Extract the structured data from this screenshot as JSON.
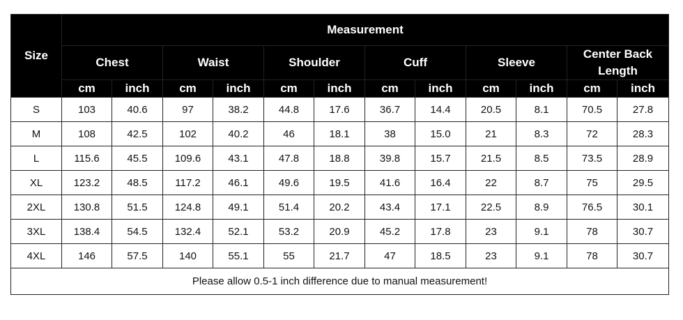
{
  "header": {
    "size_label": "Size",
    "measurement_label": "Measurement",
    "groups": [
      "Chest",
      "Waist",
      "Shoulder",
      "Cuff",
      "Sleeve",
      "Center Back Length"
    ],
    "unit_cm": "cm",
    "unit_inch": "inch"
  },
  "rows": [
    {
      "size": "S",
      "values": [
        "103",
        "40.6",
        "97",
        "38.2",
        "44.8",
        "17.6",
        "36.7",
        "14.4",
        "20.5",
        "8.1",
        "70.5",
        "27.8"
      ]
    },
    {
      "size": "M",
      "values": [
        "108",
        "42.5",
        "102",
        "40.2",
        "46",
        "18.1",
        "38",
        "15.0",
        "21",
        "8.3",
        "72",
        "28.3"
      ]
    },
    {
      "size": "L",
      "values": [
        "115.6",
        "45.5",
        "109.6",
        "43.1",
        "47.8",
        "18.8",
        "39.8",
        "15.7",
        "21.5",
        "8.5",
        "73.5",
        "28.9"
      ]
    },
    {
      "size": "XL",
      "values": [
        "123.2",
        "48.5",
        "117.2",
        "46.1",
        "49.6",
        "19.5",
        "41.6",
        "16.4",
        "22",
        "8.7",
        "75",
        "29.5"
      ]
    },
    {
      "size": "2XL",
      "values": [
        "130.8",
        "51.5",
        "124.8",
        "49.1",
        "51.4",
        "20.2",
        "43.4",
        "17.1",
        "22.5",
        "8.9",
        "76.5",
        "30.1"
      ]
    },
    {
      "size": "3XL",
      "values": [
        "138.4",
        "54.5",
        "132.4",
        "52.1",
        "53.2",
        "20.9",
        "45.2",
        "17.8",
        "23",
        "9.1",
        "78",
        "30.7"
      ]
    },
    {
      "size": "4XL",
      "values": [
        "146",
        "57.5",
        "140",
        "55.1",
        "55",
        "21.7",
        "47",
        "18.5",
        "23",
        "9.1",
        "78",
        "30.7"
      ]
    }
  ],
  "note": "Please allow 0.5-1 inch difference due to manual measurement!"
}
